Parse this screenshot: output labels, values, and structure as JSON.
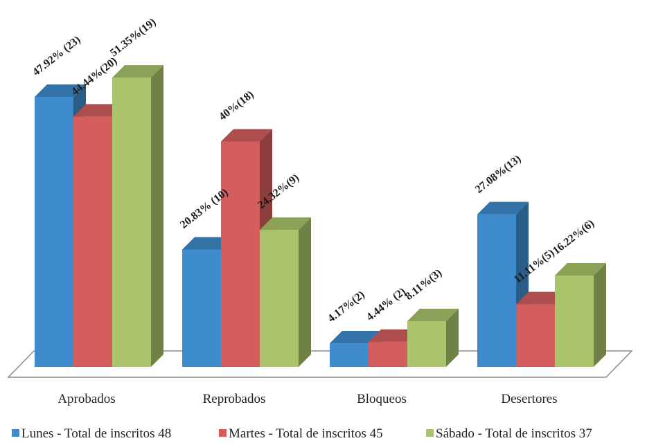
{
  "chart_data": {
    "type": "bar",
    "categories": [
      "Aprobados",
      "Reprobados",
      "Bloqueos",
      "Desertores"
    ],
    "series": [
      {
        "name": "Lunes - Total de inscritos 48",
        "color": "#3e8ccd",
        "values": [
          47.92,
          20.83,
          4.17,
          27.08
        ],
        "labels": [
          "47.92% (23)",
          "20.83% (10)",
          "4.17%(2)",
          "27.08%(13)"
        ]
      },
      {
        "name": "Martes - Total de inscritos 45",
        "color": "#d45e5e",
        "values": [
          44.44,
          40,
          4.44,
          11.11
        ],
        "labels": [
          "44.44%(20)",
          "40%(18)",
          "4.44% (2)",
          "11.11%(5)"
        ]
      },
      {
        "name": "Sábado - Total de inscritos 37",
        "color": "#a9c46a",
        "values": [
          51.35,
          24.32,
          8.11,
          16.22
        ],
        "labels": [
          "51.35%(19)",
          "24.32%(9)",
          "8.11%(3)",
          "16.22%(6)"
        ]
      }
    ],
    "ylim": [
      0,
      55
    ],
    "grid": false,
    "style": "3d-column",
    "legend_position": "bottom"
  }
}
